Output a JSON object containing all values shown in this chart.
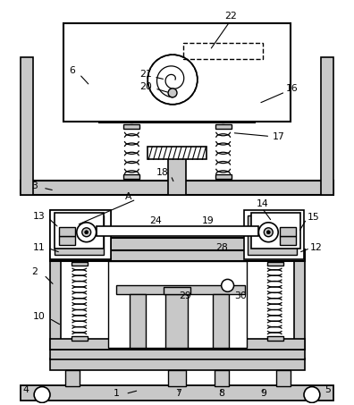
{
  "bg_color": "#ffffff",
  "lc": "#000000",
  "lgc": "#c8c8c8",
  "mgc": "#a0a0a0"
}
